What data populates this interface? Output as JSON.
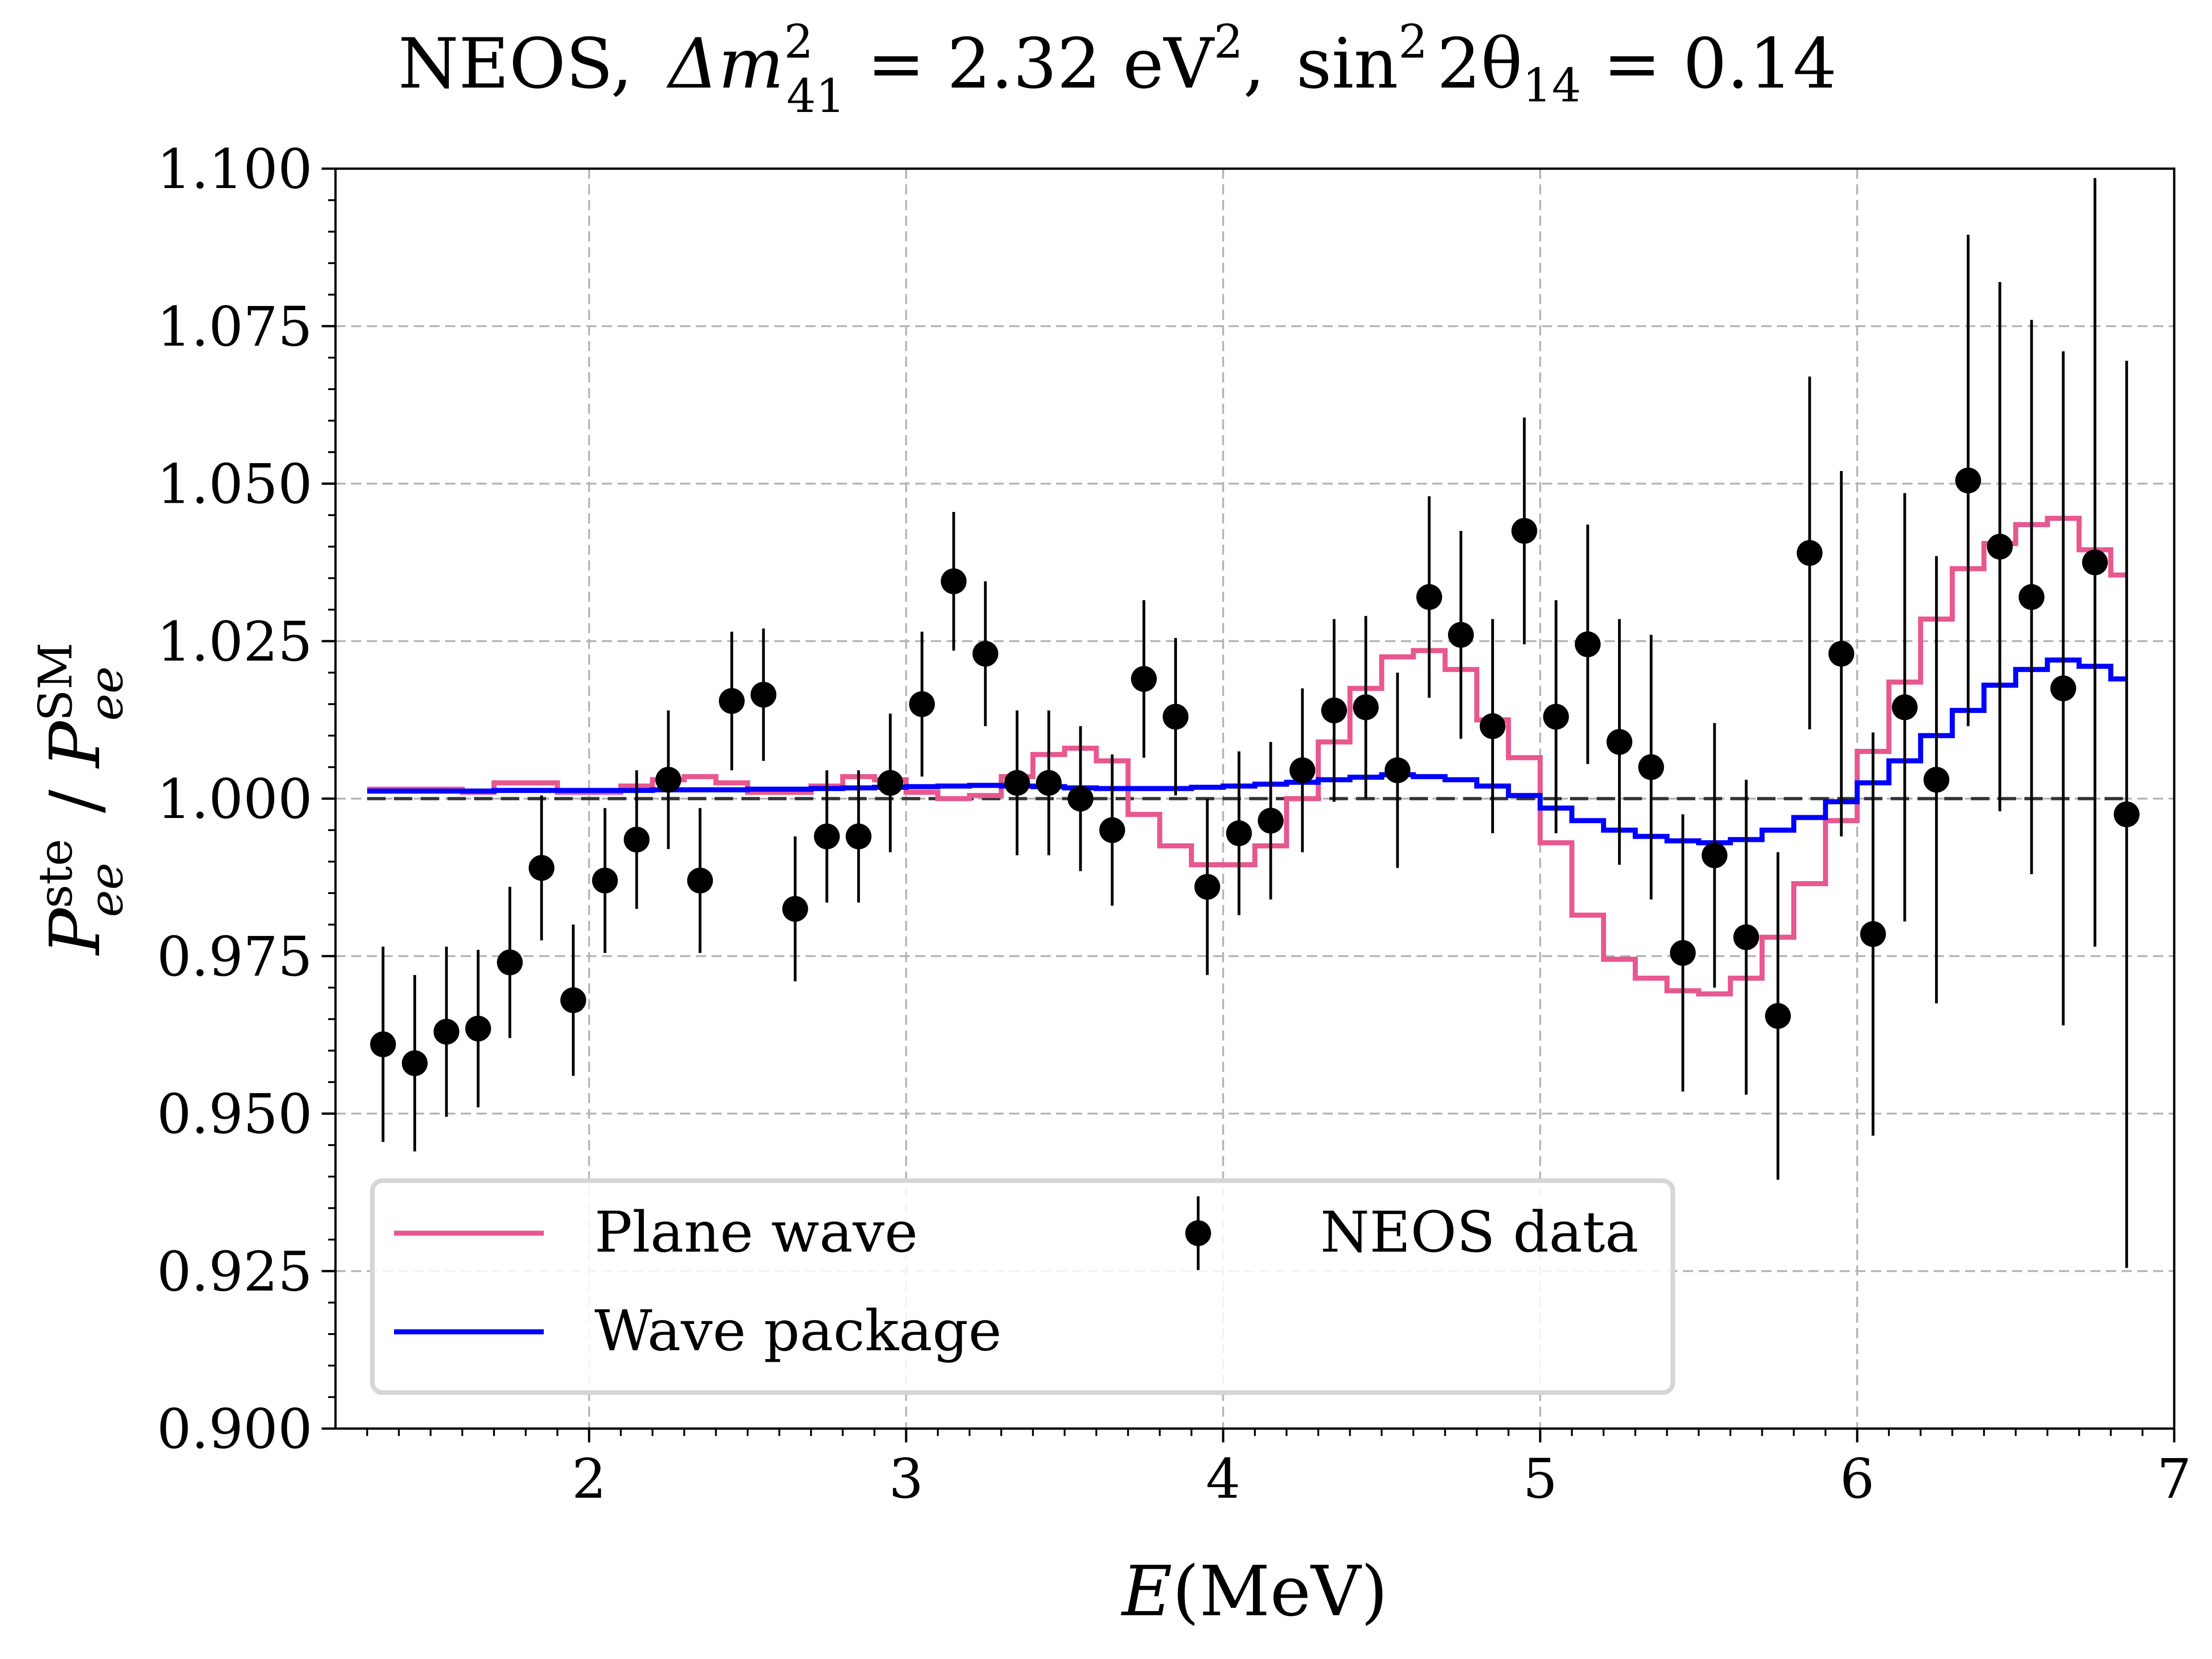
{
  "chart_data": {
    "type": "line",
    "title": "NEOS, Δm²₄₁ = 2.32 eV², sin² 2θ₁₄ = 0.14",
    "title_parts": {
      "prefix": "NEOS,",
      "dm": "Δm",
      "dm_sup": "2",
      "dm_sub": "41",
      "dm_val": " = 2.32 eV",
      "ev_sup": "2",
      "comma": ",",
      "sin": "sin",
      "sin_sup": "2",
      "theta": "2θ",
      "theta_sub": "14",
      "theta_val": " = 0.14"
    },
    "xlabel": "E(MeV)",
    "xlabel_parts": {
      "var": "E",
      "unit": "(MeV)"
    },
    "ylabel": "P_ee^ste / P_ee^SM",
    "ylabel_parts": {
      "p1": "P",
      "p1_sup": "ste",
      "p1_sub": "ee",
      "slash": " / ",
      "p2": "P",
      "p2_sup": "SM",
      "p2_sub": "ee"
    },
    "xlim": [
      1.2,
      7.0
    ],
    "ylim": [
      0.9,
      1.1
    ],
    "x_ticks": [
      2,
      3,
      4,
      5,
      6,
      7
    ],
    "x_tick_labels": [
      "2",
      "3",
      "4",
      "5",
      "6",
      "7"
    ],
    "y_ticks": [
      0.9,
      0.925,
      0.95,
      0.975,
      1.0,
      1.025,
      1.05,
      1.075,
      1.1
    ],
    "y_tick_labels": [
      "0.900",
      "0.925",
      "0.950",
      "0.975",
      "1.000",
      "1.025",
      "1.050",
      "1.075",
      "1.100"
    ],
    "grid": true,
    "legend_position": "bottom-left",
    "reference_line": {
      "y": 1.0,
      "style": "dashed"
    },
    "bin_edges": [
      1.3,
      1.4,
      1.5,
      1.6,
      1.7,
      1.8,
      1.9,
      2.0,
      2.1,
      2.2,
      2.3,
      2.4,
      2.5,
      2.6,
      2.7,
      2.8,
      2.9,
      3.0,
      3.1,
      3.2,
      3.3,
      3.4,
      3.5,
      3.6,
      3.7,
      3.8,
      3.9,
      4.0,
      4.1,
      4.2,
      4.3,
      4.4,
      4.5,
      4.6,
      4.7,
      4.8,
      4.9,
      5.0,
      5.1,
      5.2,
      5.3,
      5.4,
      5.5,
      5.6,
      5.7,
      5.8,
      5.9,
      6.0,
      6.1,
      6.2,
      6.3,
      6.4,
      6.5,
      6.6,
      6.7,
      6.8,
      6.85
    ],
    "series": [
      {
        "name": "Plane wave",
        "kind": "step",
        "color": "#e8578f",
        "values": [
          1.0015,
          1.0015,
          1.0015,
          1.001,
          1.0025,
          1.0025,
          1.001,
          1.001,
          1.002,
          1.003,
          1.0035,
          1.0025,
          1.001,
          1.001,
          1.002,
          1.0035,
          1.003,
          1.001,
          1.0,
          1.0005,
          1.0035,
          1.007,
          1.008,
          1.006,
          0.9975,
          0.9925,
          0.9895,
          0.9895,
          0.9925,
          1.0,
          1.009,
          1.0175,
          1.0225,
          1.0235,
          1.0205,
          1.0125,
          1.0065,
          0.993,
          0.9815,
          0.9745,
          0.9715,
          0.9695,
          0.969,
          0.9715,
          0.978,
          0.9865,
          0.9965,
          1.0075,
          1.0185,
          1.0285,
          1.0365,
          1.0405,
          1.0435,
          1.0445,
          1.0395,
          1.0355,
          1.0285
        ]
      },
      {
        "name": "Wave package",
        "kind": "step",
        "color": "#0000ff",
        "values": [
          1.0012,
          1.0012,
          1.0012,
          1.0012,
          1.0013,
          1.0013,
          1.0013,
          1.0013,
          1.0013,
          1.0014,
          1.0014,
          1.0014,
          1.0015,
          1.0015,
          1.0016,
          1.0017,
          1.0018,
          1.0019,
          1.002,
          1.0021,
          1.002,
          1.0019,
          1.0017,
          1.0016,
          1.0016,
          1.0016,
          1.0018,
          1.002,
          1.0023,
          1.0026,
          1.003,
          1.0034,
          1.0038,
          1.0035,
          1.003,
          1.002,
          1.0005,
          0.9985,
          0.9965,
          0.995,
          0.994,
          0.9933,
          0.993,
          0.9935,
          0.995,
          0.997,
          0.9995,
          1.0025,
          1.006,
          1.01,
          1.014,
          1.018,
          1.0205,
          1.022,
          1.021,
          1.019,
          1.015
        ]
      },
      {
        "name": "NEOS data",
        "kind": "errorbar",
        "color": "#000000",
        "x": [
          1.35,
          1.45,
          1.55,
          1.65,
          1.75,
          1.85,
          1.95,
          2.05,
          2.15,
          2.25,
          2.35,
          2.45,
          2.55,
          2.65,
          2.75,
          2.85,
          2.95,
          3.05,
          3.15,
          3.25,
          3.35,
          3.45,
          3.55,
          3.65,
          3.75,
          3.85,
          3.95,
          4.05,
          4.15,
          4.25,
          4.35,
          4.45,
          4.55,
          4.65,
          4.75,
          4.85,
          4.95,
          5.05,
          5.15,
          5.25,
          5.35,
          5.45,
          5.55,
          5.65,
          5.75,
          5.85,
          5.95,
          6.05,
          6.15,
          6.25,
          6.35,
          6.45,
          6.55,
          6.65,
          6.75,
          6.85
        ],
        "y": [
          0.961,
          0.958,
          0.963,
          0.9635,
          0.974,
          0.989,
          0.968,
          0.987,
          0.9935,
          1.003,
          0.987,
          1.0155,
          1.0165,
          0.9825,
          0.994,
          0.994,
          1.0025,
          1.015,
          1.0345,
          1.023,
          1.0025,
          1.0025,
          1.0,
          0.995,
          1.019,
          1.013,
          0.986,
          0.9945,
          0.9965,
          1.0045,
          1.014,
          1.0145,
          1.0045,
          1.032,
          1.026,
          1.0115,
          1.0425,
          1.013,
          1.0245,
          1.009,
          1.005,
          0.9755,
          0.991,
          0.978,
          0.9655,
          1.039,
          1.023,
          0.9785,
          1.0145,
          1.003,
          1.0505,
          1.04,
          1.032,
          1.0175,
          1.0375,
          0.9975
        ],
        "yerr": [
          0.0155,
          0.014,
          0.0135,
          0.0125,
          0.012,
          0.0115,
          0.012,
          0.0115,
          0.011,
          0.011,
          0.0115,
          0.011,
          0.0105,
          0.0115,
          0.0105,
          0.0105,
          0.011,
          0.0115,
          0.011,
          0.0115,
          0.0115,
          0.0115,
          0.0115,
          0.012,
          0.0125,
          0.0125,
          0.014,
          0.013,
          0.0125,
          0.013,
          0.0145,
          0.0145,
          0.0155,
          0.016,
          0.0165,
          0.017,
          0.018,
          0.0185,
          0.019,
          0.0195,
          0.021,
          0.022,
          0.021,
          0.025,
          0.026,
          0.028,
          0.029,
          0.032,
          0.034,
          0.0355,
          0.039,
          0.042,
          0.044,
          0.0535,
          0.061,
          0.072
        ]
      }
    ]
  }
}
